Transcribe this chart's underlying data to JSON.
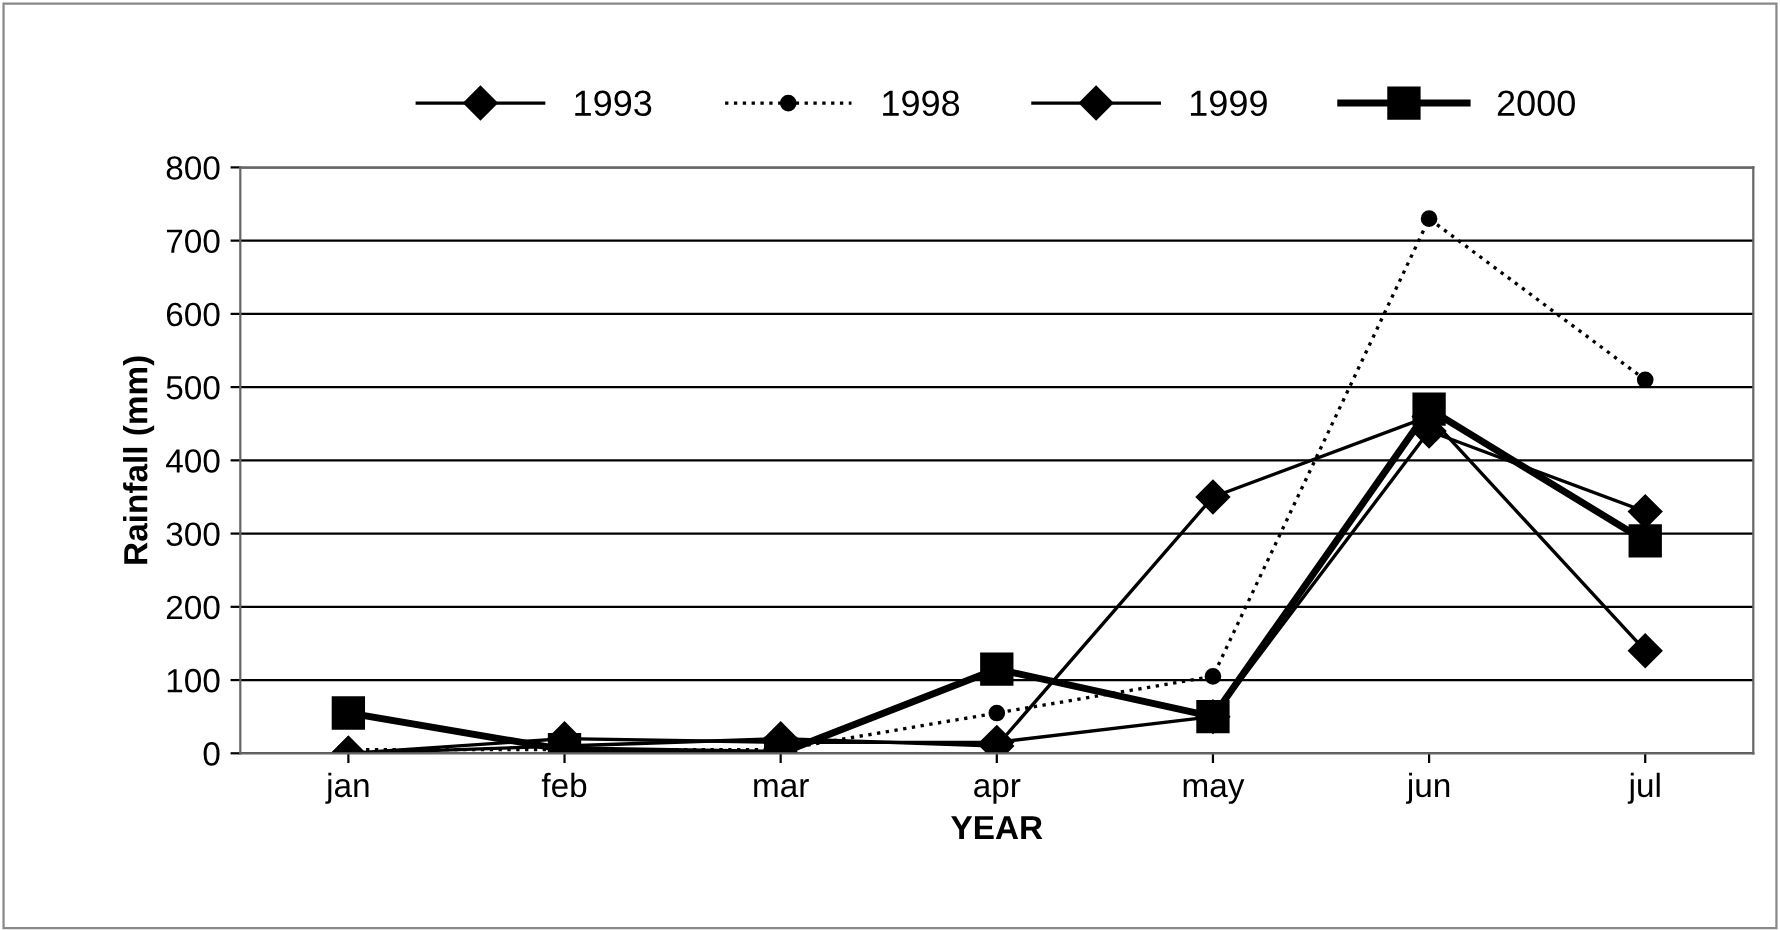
{
  "chart_data": {
    "type": "line",
    "xlabel": "YEAR",
    "ylabel": "Rainfall (mm)",
    "categories": [
      "jan",
      "feb",
      "mar",
      "apr",
      "may",
      "jun",
      "jul"
    ],
    "series": [
      {
        "name": "1993",
        "color": "#000000",
        "marker": "diamond",
        "line_style": "solid",
        "values": [
          0,
          20,
          15,
          15,
          50,
          440,
          330
        ]
      },
      {
        "name": "1998",
        "color": "#000000",
        "marker": "circle",
        "line_style": "dotted",
        "values": [
          5,
          5,
          5,
          55,
          105,
          730,
          510
        ]
      },
      {
        "name": "1999",
        "color": "#000000",
        "marker": "diamond",
        "line_style": "solid",
        "values": [
          0,
          10,
          20,
          10,
          350,
          460,
          140
        ]
      },
      {
        "name": "2000",
        "color": "#000000",
        "marker": "square",
        "line_style": "solid",
        "values": [
          55,
          5,
          0,
          115,
          50,
          470,
          290
        ]
      }
    ],
    "ylim": [
      0,
      800
    ],
    "yticks": [
      0,
      100,
      200,
      300,
      400,
      500,
      600,
      700,
      800
    ],
    "grid": "y",
    "legend": "top"
  }
}
